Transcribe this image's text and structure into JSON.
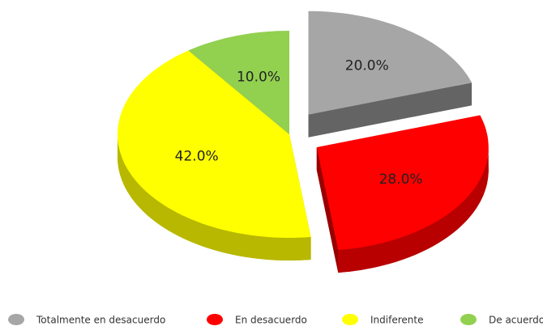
{
  "chart_data": {
    "type": "pie",
    "categories": [
      "Totalmente en desacuerdo",
      "En desacuerdo",
      "Indiferente",
      "De acuerdo"
    ],
    "values": [
      20,
      28,
      42,
      10
    ],
    "value_labels": [
      "20.0%",
      "28.0%",
      "42.0%",
      "10.0%"
    ],
    "colors": [
      "#a6a6a6",
      "#ff0000",
      "#ffff00",
      "#92d050"
    ],
    "exploded": [
      true,
      true,
      false,
      false
    ],
    "legend": "bottom"
  }
}
